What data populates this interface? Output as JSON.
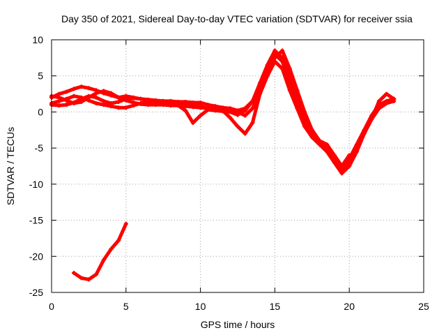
{
  "chart_data": {
    "type": "scatter",
    "title": "Day 350 of 2021, Sidereal Day-to-day VTEC variation (SDTVAR) for receiver ssia",
    "xlabel": "GPS time / hours",
    "ylabel": "SDTVAR / TECUs",
    "xlim": [
      0,
      25
    ],
    "ylim": [
      -25,
      10
    ],
    "x_ticks": [
      0,
      5,
      10,
      15,
      20,
      25
    ],
    "y_ticks": [
      10,
      5,
      0,
      -5,
      -10,
      -15,
      -20,
      -25
    ],
    "x_tick_labels": [
      "0",
      "5",
      "10",
      "15",
      "20",
      "25"
    ],
    "y_tick_labels": [
      "10",
      "5",
      "0",
      "-5",
      "-10",
      "-15",
      "-20",
      "-25"
    ],
    "grid": true,
    "legend": "none",
    "series_color": "#ff0000",
    "series": [
      {
        "name": "track-1",
        "x": [
          0.0,
          0.5,
          1.0,
          1.5,
          2.0,
          2.5,
          3.0,
          3.5,
          4.0,
          4.5,
          5.0,
          5.5,
          6.0,
          6.5,
          7.0,
          7.5,
          8.0,
          8.5,
          9.0,
          9.5,
          10.0,
          10.5,
          11.0,
          11.5,
          12.0,
          12.5,
          13.0,
          13.5,
          14.0,
          14.5,
          15.0,
          15.5,
          16.0,
          16.5,
          17.0,
          17.5,
          18.0,
          18.5,
          19.0,
          19.5,
          20.0,
          20.5,
          21.0,
          21.5,
          22.0,
          22.5,
          23.0
        ],
        "y": [
          2.0,
          2.5,
          2.8,
          3.2,
          3.5,
          3.3,
          3.0,
          2.6,
          2.3,
          2.0,
          2.2,
          2.0,
          1.8,
          1.7,
          1.6,
          1.5,
          1.5,
          1.4,
          1.4,
          1.3,
          1.3,
          1.0,
          0.8,
          0.6,
          0.5,
          0.2,
          0.5,
          1.5,
          3.5,
          5.5,
          7.5,
          8.5,
          6.0,
          3.0,
          0.0,
          -2.5,
          -4.0,
          -5.0,
          -6.5,
          -8.0,
          -7.0,
          -5.0,
          -3.0,
          -1.0,
          1.5,
          2.5,
          1.8
        ]
      },
      {
        "name": "track-2",
        "x": [
          0.0,
          0.5,
          1.0,
          1.5,
          2.0,
          2.5,
          3.0,
          3.5,
          4.0,
          4.5,
          5.0,
          5.5,
          6.0,
          6.5,
          7.0,
          7.5,
          8.0,
          8.5,
          9.0,
          9.5,
          10.0,
          10.5,
          11.0,
          11.5,
          12.0,
          12.5,
          13.0,
          13.5,
          14.0,
          14.5,
          15.0,
          15.5,
          16.0,
          16.5,
          17.0,
          17.5,
          18.0,
          18.5,
          19.0,
          19.5,
          20.0,
          20.5,
          21.0,
          21.5,
          22.0,
          22.5,
          23.0
        ],
        "y": [
          1.2,
          1.5,
          1.8,
          2.2,
          2.0,
          1.6,
          1.2,
          1.0,
          0.8,
          0.6,
          0.6,
          0.9,
          1.2,
          1.4,
          1.5,
          1.5,
          1.4,
          1.3,
          1.2,
          1.0,
          0.8,
          0.5,
          0.3,
          0.2,
          -0.8,
          -2.0,
          -3.0,
          -1.5,
          2.5,
          5.0,
          7.0,
          6.0,
          3.0,
          0.5,
          -2.0,
          -3.5,
          -4.5,
          -5.5,
          -7.0,
          -8.5,
          -7.5,
          -5.5,
          -3.0,
          -1.0,
          0.5,
          1.2,
          1.5
        ]
      },
      {
        "name": "track-3",
        "x": [
          0.0,
          0.5,
          1.0,
          1.5,
          2.0,
          2.5,
          3.0,
          3.5,
          4.0,
          4.5,
          5.0,
          5.5,
          6.0,
          6.5,
          7.0,
          7.5,
          8.0,
          8.5,
          9.0,
          9.5,
          10.0,
          10.5,
          11.0,
          11.5,
          12.0,
          12.5,
          13.0,
          13.5,
          14.0,
          14.5,
          15.0,
          15.5,
          16.0,
          16.5,
          17.0,
          17.5,
          18.0,
          18.5,
          19.0,
          19.5,
          20.0,
          20.5,
          21.0,
          21.5,
          22.0,
          22.5,
          23.0
        ],
        "y": [
          2.2,
          2.0,
          1.6,
          1.2,
          1.4,
          2.0,
          2.6,
          2.9,
          2.6,
          2.0,
          1.6,
          1.3,
          1.1,
          1.0,
          1.0,
          1.0,
          0.9,
          0.9,
          0.8,
          0.7,
          0.6,
          0.5,
          0.4,
          0.3,
          0.2,
          0.0,
          -0.5,
          0.5,
          3.0,
          5.5,
          8.0,
          7.0,
          4.0,
          1.5,
          -1.0,
          -3.0,
          -4.0,
          -4.5,
          -6.0,
          -7.5,
          -6.5,
          -4.5,
          -2.5,
          -0.5,
          1.0,
          1.5,
          1.8
        ]
      },
      {
        "name": "track-4",
        "x": [
          0.0,
          0.5,
          1.0,
          1.5,
          2.0,
          2.5,
          3.0,
          3.5,
          4.0,
          4.5,
          5.0,
          5.5,
          6.0,
          6.5,
          7.0,
          7.5,
          8.0,
          8.5,
          9.0,
          9.5,
          10.0,
          10.5,
          11.0,
          11.5,
          12.0,
          12.5,
          13.0,
          13.5,
          14.0,
          14.5,
          15.0,
          15.5,
          16.0,
          16.5,
          17.0,
          17.5,
          18.0,
          18.5,
          19.0,
          19.5,
          20.0
        ],
        "y": [
          1.0,
          0.9,
          1.0,
          1.3,
          1.8,
          2.2,
          2.0,
          1.5,
          1.2,
          1.4,
          1.8,
          1.9,
          1.8,
          1.6,
          1.4,
          1.2,
          1.1,
          0.9,
          0.2,
          -1.5,
          -0.5,
          0.3,
          0.2,
          0.1,
          0.0,
          -0.4,
          0.2,
          1.5,
          4.0,
          6.5,
          8.5,
          7.5,
          5.0,
          2.0,
          -0.5,
          -2.5,
          -4.0,
          -5.0,
          -6.5,
          -7.5,
          -6.0
        ]
      },
      {
        "name": "track-5",
        "x": [
          1.5,
          2.0,
          2.5,
          3.0,
          3.5,
          4.0,
          4.5,
          5.0
        ],
        "y": [
          -22.3,
          -23.0,
          -23.2,
          -22.5,
          -20.5,
          -19.0,
          -17.8,
          -15.5
        ]
      }
    ]
  }
}
